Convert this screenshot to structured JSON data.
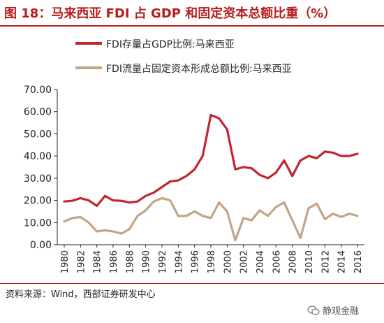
{
  "title": "图 18：马来西亚 FDI 占 GDP 和固定资本总额比重（%）",
  "source": "资料来源：Wind，西部证券研发中心",
  "watermark": "静观金融",
  "colors": {
    "series1": "#c0272d",
    "series2": "#c4a484",
    "title": "#b71c1c"
  },
  "chart_data": {
    "type": "line",
    "ylim": [
      0,
      70
    ],
    "ytick_labels": [
      "0.00",
      "10.00",
      "20.00",
      "30.00",
      "40.00",
      "50.00",
      "60.00",
      "70.00"
    ],
    "yticks": [
      0,
      10,
      20,
      30,
      40,
      50,
      60,
      70
    ],
    "xtick_labels": [
      "1980",
      "1982",
      "1984",
      "1986",
      "1988",
      "1990",
      "1992",
      "1994",
      "1996",
      "1998",
      "2000",
      "2002",
      "2004",
      "2006",
      "2008",
      "2010",
      "2012",
      "2014",
      "2016"
    ],
    "x": [
      1980,
      1981,
      1982,
      1983,
      1984,
      1985,
      1986,
      1987,
      1988,
      1989,
      1990,
      1991,
      1992,
      1993,
      1994,
      1995,
      1996,
      1997,
      1998,
      1999,
      2000,
      2001,
      2002,
      2003,
      2004,
      2005,
      2006,
      2007,
      2008,
      2009,
      2010,
      2011,
      2012,
      2013,
      2014,
      2015,
      2016
    ],
    "legend_position": "top-left",
    "series": [
      {
        "name": "FDI存量占GDP比例:马来西亚",
        "color": "#c0272d",
        "values": [
          19.5,
          19.8,
          21,
          20,
          17.5,
          22,
          20,
          19.8,
          19,
          19.5,
          22,
          23.5,
          26,
          28.5,
          29,
          31,
          34,
          40,
          58.5,
          57,
          52,
          34,
          35,
          34.5,
          31.5,
          30,
          32.5,
          38,
          31,
          38,
          40,
          39,
          42,
          41.5,
          40,
          40,
          41
        ]
      },
      {
        "name": "FDI流量占固定资本形成总额比例:马来西亚",
        "color": "#c4a484",
        "values": [
          10.5,
          12,
          12.5,
          10,
          6,
          6.5,
          6,
          5,
          7,
          13,
          15.5,
          19.5,
          21,
          20,
          13,
          13,
          15,
          13,
          12,
          19,
          15,
          2,
          12,
          11,
          15.5,
          13,
          17,
          19,
          11,
          3,
          16.5,
          18.5,
          11.5,
          14,
          12.5,
          14,
          13
        ]
      }
    ]
  }
}
